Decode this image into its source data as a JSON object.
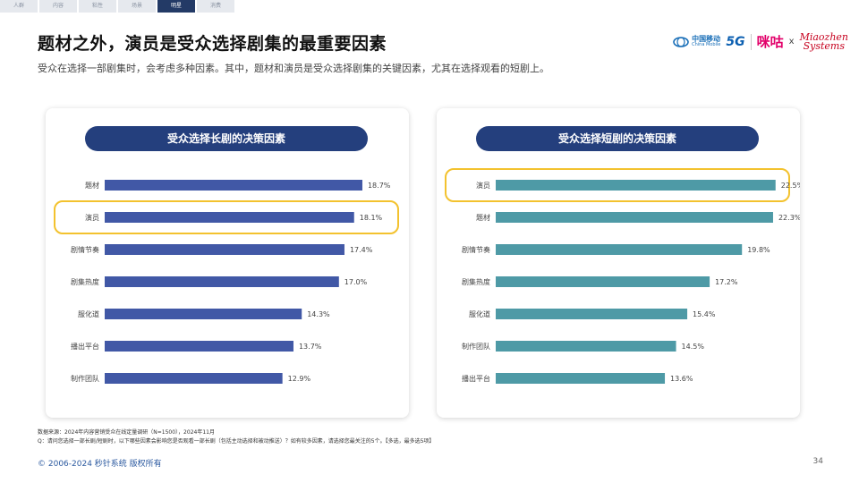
{
  "tabs": [
    {
      "label": "人群",
      "active": false
    },
    {
      "label": "内容",
      "active": false
    },
    {
      "label": "粘性",
      "active": false
    },
    {
      "label": "场景",
      "active": false
    },
    {
      "label": "明星",
      "active": true
    },
    {
      "label": "消费",
      "active": false
    }
  ],
  "title": "题材之外，演员是受众选择剧集的最重要因素",
  "subtitle": "受众在选择一部剧集时，会考虑多种因素。其中，题材和演员是受众选择剧集的关键因素，尤其在选择观看的短剧上。",
  "logos": {
    "china_mobile_cn": "中国移动",
    "china_mobile_en": "China Mobile",
    "fiveg": "5G",
    "migu": "咪咕",
    "x": "x",
    "miaozhen_line1": "Miaozhen",
    "miaozhen_line2": "Systems"
  },
  "colors": {
    "long_bar": "#4158a6",
    "short_bar": "#4e9aa6",
    "highlight": "#f3c22e",
    "pill": "#243f7d"
  },
  "chart_data": [
    {
      "type": "bar",
      "orientation": "horizontal",
      "title": "受众选择长剧的决策因素",
      "categories": [
        "题材",
        "演员",
        "剧情节奏",
        "剧集热度",
        "服化道",
        "播出平台",
        "制作团队"
      ],
      "values": [
        18.7,
        18.1,
        17.4,
        17.0,
        14.3,
        13.7,
        12.9
      ],
      "value_labels": [
        "18.7%",
        "18.1%",
        "17.4%",
        "17.0%",
        "14.3%",
        "13.7%",
        "12.9%"
      ],
      "unit": "%",
      "highlight": "演员",
      "xlim": [
        0,
        25
      ]
    },
    {
      "type": "bar",
      "orientation": "horizontal",
      "title": "受众选择短剧的决策因素",
      "categories": [
        "演员",
        "题材",
        "剧情节奏",
        "剧集热度",
        "服化道",
        "制作团队",
        "播出平台"
      ],
      "values": [
        22.5,
        22.3,
        19.8,
        17.2,
        15.4,
        14.5,
        13.6
      ],
      "value_labels": [
        "22.5%",
        "22.3%",
        "19.8%",
        "17.2%",
        "15.4%",
        "14.5%",
        "13.6%"
      ],
      "unit": "%",
      "highlight": "演员",
      "xlim": [
        0,
        26
      ]
    }
  ],
  "footnote_source": "数据来源：2024年内容营销受众在线定量调研（N=1500），2024年11月",
  "footnote_q": "Q：请问您选择一部长剧/短剧时，以下哪些因素会影响您是否观看一部长剧（包括主动选择和被动推送）？如有较多因素，请选择您最关注的5个。【多选，最多选5项】",
  "copyright": "© 2006-2024 秒针系统 版权所有",
  "page_number": "34"
}
